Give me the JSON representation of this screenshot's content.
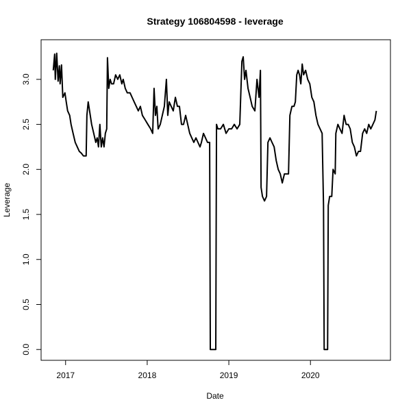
{
  "chart_data": {
    "type": "line",
    "title": "Strategy 106804598 - leverage",
    "x_label": "Date",
    "y_label": "Leverage",
    "xlim": [
      2016.7,
      2020.98
    ],
    "xticks": [
      2017,
      2018,
      2019,
      2020
    ],
    "ylim": [
      -0.12,
      3.44
    ],
    "yticks": [
      {
        "value": 0,
        "label": "0.0"
      },
      0.5,
      {
        "value": 1,
        "label": "1.0"
      },
      1.5,
      {
        "value": 2,
        "label": "2.0"
      },
      2.5,
      {
        "value": 3,
        "label": "3.0"
      }
    ],
    "grid": false,
    "series": [
      {
        "color": "#000000",
        "x": [
          2016.849,
          2016.866,
          2016.874,
          2016.891,
          2016.908,
          2016.924,
          2016.933,
          2016.95,
          2016.966,
          2016.992,
          2017.008,
          2017.025,
          2017.05,
          2017.067,
          2017.092,
          2017.118,
          2017.143,
          2017.168,
          2017.193,
          2017.218,
          2017.252,
          2017.261,
          2017.277,
          2017.294,
          2017.319,
          2017.345,
          2017.37,
          2017.387,
          2017.403,
          2017.42,
          2017.437,
          2017.454,
          2017.471,
          2017.487,
          2017.504,
          2017.513,
          2017.529,
          2017.546,
          2017.563,
          2017.588,
          2017.613,
          2017.639,
          2017.664,
          2017.689,
          2017.706,
          2017.731,
          2017.756,
          2017.79,
          2017.815,
          2017.84,
          2017.866,
          2017.891,
          2017.916,
          2017.941,
          2017.975,
          2018.008,
          2018.042,
          2018.067,
          2018.084,
          2018.101,
          2018.118,
          2018.134,
          2018.16,
          2018.185,
          2018.21,
          2018.235,
          2018.252,
          2018.269,
          2018.294,
          2018.319,
          2018.345,
          2018.37,
          2018.395,
          2018.42,
          2018.445,
          2018.471,
          2018.496,
          2018.521,
          2018.546,
          2018.571,
          2018.597,
          2018.622,
          2018.647,
          2018.664,
          2018.689,
          2018.714,
          2018.739,
          2018.765,
          2018.773,
          2018.84,
          2018.849,
          2018.866,
          2018.899,
          2018.933,
          2018.966,
          2019.0,
          2019.034,
          2019.067,
          2019.101,
          2019.134,
          2019.16,
          2019.176,
          2019.193,
          2019.21,
          2019.235,
          2019.261,
          2019.286,
          2019.319,
          2019.345,
          2019.37,
          2019.387,
          2019.395,
          2019.412,
          2019.437,
          2019.462,
          2019.479,
          2019.504,
          2019.529,
          2019.555,
          2019.58,
          2019.605,
          2019.63,
          2019.655,
          2019.681,
          2019.706,
          2019.731,
          2019.748,
          2019.773,
          2019.798,
          2019.815,
          2019.832,
          2019.849,
          2019.866,
          2019.882,
          2019.899,
          2019.916,
          2019.941,
          2019.966,
          2019.992,
          2020.017,
          2020.042,
          2020.067,
          2020.092,
          2020.118,
          2020.143,
          2020.16,
          2020.168,
          2020.21,
          2020.218,
          2020.235,
          2020.261,
          2020.277,
          2020.303,
          2020.311,
          2020.336,
          2020.361,
          2020.387,
          2020.412,
          2020.437,
          2020.462,
          2020.487,
          2020.513,
          2020.538,
          2020.563,
          2020.588,
          2020.613,
          2020.639,
          2020.664,
          2020.689,
          2020.714,
          2020.739,
          2020.765,
          2020.79,
          2020.807
        ],
        "values": [
          3.1,
          3.28,
          3.0,
          3.29,
          2.98,
          3.15,
          2.95,
          3.16,
          2.8,
          2.85,
          2.75,
          2.65,
          2.6,
          2.5,
          2.4,
          2.3,
          2.25,
          2.2,
          2.18,
          2.15,
          2.15,
          2.6,
          2.75,
          2.65,
          2.5,
          2.4,
          2.3,
          2.35,
          2.25,
          2.5,
          2.25,
          2.35,
          2.25,
          2.4,
          2.45,
          3.24,
          2.9,
          3.0,
          2.95,
          2.95,
          3.05,
          3.0,
          3.05,
          2.95,
          3.0,
          2.9,
          2.85,
          2.85,
          2.8,
          2.75,
          2.7,
          2.65,
          2.7,
          2.6,
          2.55,
          2.5,
          2.45,
          2.4,
          2.9,
          2.6,
          2.7,
          2.45,
          2.5,
          2.6,
          2.7,
          3.0,
          2.6,
          2.75,
          2.7,
          2.65,
          2.8,
          2.7,
          2.7,
          2.5,
          2.5,
          2.6,
          2.5,
          2.4,
          2.35,
          2.3,
          2.35,
          2.3,
          2.25,
          2.3,
          2.4,
          2.35,
          2.3,
          2.3,
          0.0,
          0.0,
          2.5,
          2.45,
          2.45,
          2.5,
          2.4,
          2.45,
          2.45,
          2.5,
          2.45,
          2.5,
          3.2,
          3.25,
          3.0,
          3.1,
          2.9,
          2.8,
          2.7,
          2.65,
          3.0,
          2.8,
          3.1,
          1.8,
          1.7,
          1.65,
          1.7,
          2.3,
          2.35,
          2.3,
          2.25,
          2.1,
          2.0,
          1.95,
          1.85,
          1.95,
          1.95,
          1.95,
          2.6,
          2.7,
          2.7,
          2.75,
          3.05,
          3.1,
          3.05,
          2.95,
          3.17,
          3.05,
          3.1,
          3.0,
          2.95,
          2.8,
          2.75,
          2.6,
          2.5,
          2.45,
          2.4,
          1.6,
          0.0,
          0.0,
          1.6,
          1.7,
          1.7,
          2.0,
          1.95,
          2.4,
          2.5,
          2.45,
          2.4,
          2.6,
          2.5,
          2.5,
          2.45,
          2.3,
          2.25,
          2.15,
          2.2,
          2.2,
          2.4,
          2.45,
          2.4,
          2.5,
          2.45,
          2.5,
          2.55,
          2.65
        ]
      }
    ]
  }
}
